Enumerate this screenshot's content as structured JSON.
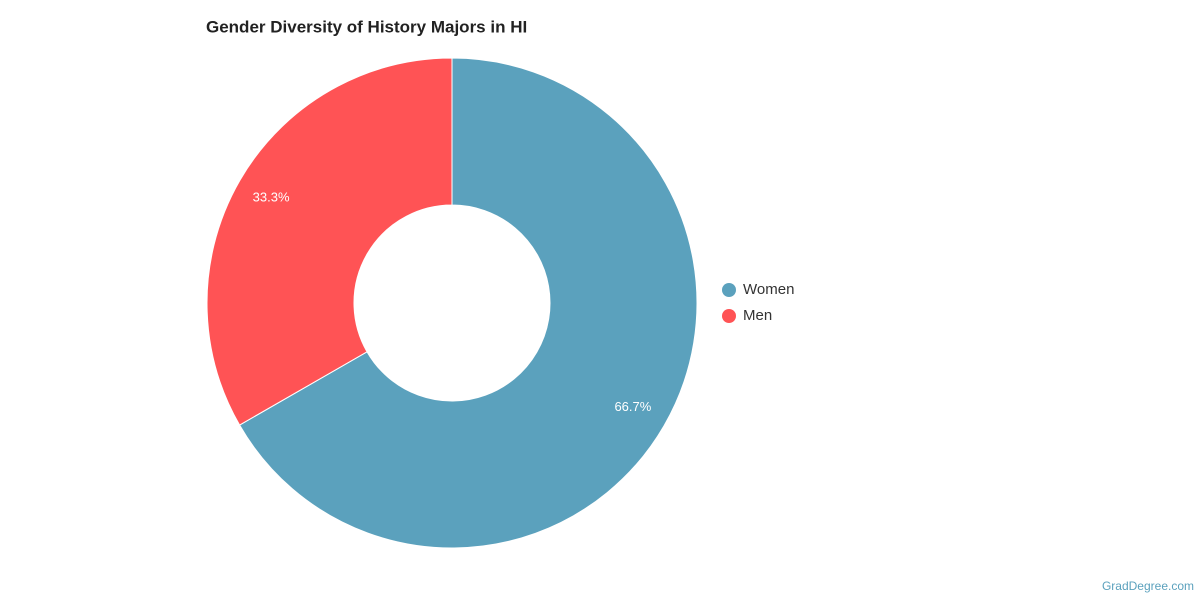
{
  "chart_data": {
    "type": "donut",
    "title": "Gender Diversity of History Majors in HI",
    "categories": [
      "Women",
      "Men"
    ],
    "values": [
      66.7,
      33.3
    ],
    "value_labels": [
      "66.7%",
      "33.3%"
    ],
    "colors": [
      "#5ba1bd",
      "#ff5355"
    ],
    "legend": "right",
    "source": "GradDegree.com"
  }
}
